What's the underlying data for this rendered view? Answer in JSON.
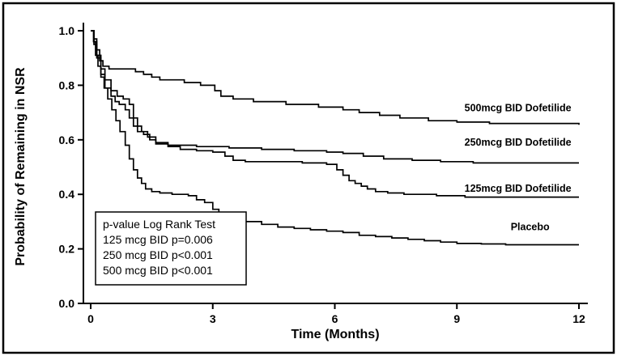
{
  "figure": {
    "background": "#ffffff",
    "border_color": "#000000",
    "line_color": "#000000"
  },
  "chart_data": {
    "type": "line",
    "subtype": "kaplan-meier-step-curves",
    "title": "",
    "xlabel": "Time (Months)",
    "ylabel": "Probability of Remaining in NSR",
    "xlim": [
      0,
      12
    ],
    "ylim": [
      0,
      1
    ],
    "x_tick_values": [
      0,
      3,
      6,
      9,
      12
    ],
    "x_tick_labels": [
      "0",
      "3",
      "6",
      "9",
      "12"
    ],
    "y_tick_values": [
      0.0,
      0.2,
      0.4,
      0.6,
      0.8,
      1.0
    ],
    "y_tick_labels": [
      "0.0",
      "0.2",
      "0.4",
      "0.6",
      "0.8",
      "1.0"
    ],
    "grid": false,
    "legend_position": "curve-end-labels",
    "series": [
      {
        "id": "dofetilide-500",
        "name": "500mcg BID Dofetilide",
        "label_x": 10.5,
        "label_y": 0.705,
        "points": [
          [
            0,
            1.0
          ],
          [
            0.08,
            0.97
          ],
          [
            0.15,
            0.93
          ],
          [
            0.22,
            0.89
          ],
          [
            0.3,
            0.87
          ],
          [
            0.45,
            0.86
          ],
          [
            1.1,
            0.85
          ],
          [
            1.3,
            0.84
          ],
          [
            1.5,
            0.83
          ],
          [
            1.7,
            0.82
          ],
          [
            2.3,
            0.81
          ],
          [
            2.7,
            0.8
          ],
          [
            3.05,
            0.78
          ],
          [
            3.2,
            0.76
          ],
          [
            3.5,
            0.75
          ],
          [
            4.0,
            0.74
          ],
          [
            4.8,
            0.73
          ],
          [
            5.6,
            0.72
          ],
          [
            6.2,
            0.71
          ],
          [
            6.6,
            0.7
          ],
          [
            7.1,
            0.69
          ],
          [
            7.6,
            0.68
          ],
          [
            8.3,
            0.67
          ],
          [
            9.0,
            0.665
          ],
          [
            9.8,
            0.66
          ],
          [
            12,
            0.655
          ]
        ]
      },
      {
        "id": "dofetilide-250",
        "name": "250mcg BID Dofetilide",
        "label_x": 10.5,
        "label_y": 0.578,
        "points": [
          [
            0,
            1.0
          ],
          [
            0.08,
            0.96
          ],
          [
            0.15,
            0.91
          ],
          [
            0.25,
            0.86
          ],
          [
            0.35,
            0.82
          ],
          [
            0.5,
            0.78
          ],
          [
            0.65,
            0.76
          ],
          [
            0.8,
            0.75
          ],
          [
            0.95,
            0.73
          ],
          [
            1.05,
            0.68
          ],
          [
            1.15,
            0.65
          ],
          [
            1.25,
            0.63
          ],
          [
            1.4,
            0.61
          ],
          [
            1.6,
            0.59
          ],
          [
            1.9,
            0.58
          ],
          [
            2.6,
            0.575
          ],
          [
            3.4,
            0.57
          ],
          [
            4.2,
            0.565
          ],
          [
            5.0,
            0.56
          ],
          [
            5.8,
            0.555
          ],
          [
            6.2,
            0.55
          ],
          [
            6.7,
            0.54
          ],
          [
            7.2,
            0.53
          ],
          [
            7.9,
            0.525
          ],
          [
            8.6,
            0.52
          ],
          [
            9.4,
            0.515
          ],
          [
            12,
            0.515
          ]
        ]
      },
      {
        "id": "dofetilide-125",
        "name": "125mcg BID Dofetilide",
        "label_x": 10.5,
        "label_y": 0.41,
        "points": [
          [
            0,
            1.0
          ],
          [
            0.08,
            0.95
          ],
          [
            0.15,
            0.9
          ],
          [
            0.25,
            0.84
          ],
          [
            0.35,
            0.79
          ],
          [
            0.5,
            0.76
          ],
          [
            0.6,
            0.74
          ],
          [
            0.7,
            0.73
          ],
          [
            0.85,
            0.71
          ],
          [
            0.95,
            0.68
          ],
          [
            1.05,
            0.65
          ],
          [
            1.15,
            0.63
          ],
          [
            1.3,
            0.62
          ],
          [
            1.45,
            0.6
          ],
          [
            1.6,
            0.585
          ],
          [
            1.9,
            0.575
          ],
          [
            2.2,
            0.565
          ],
          [
            2.6,
            0.56
          ],
          [
            3.0,
            0.555
          ],
          [
            3.3,
            0.54
          ],
          [
            3.5,
            0.525
          ],
          [
            3.8,
            0.52
          ],
          [
            4.5,
            0.52
          ],
          [
            5.2,
            0.515
          ],
          [
            5.8,
            0.51
          ],
          [
            6.05,
            0.49
          ],
          [
            6.2,
            0.47
          ],
          [
            6.35,
            0.45
          ],
          [
            6.5,
            0.44
          ],
          [
            6.65,
            0.43
          ],
          [
            6.8,
            0.42
          ],
          [
            7.0,
            0.41
          ],
          [
            7.3,
            0.405
          ],
          [
            7.7,
            0.4
          ],
          [
            8.5,
            0.395
          ],
          [
            9.2,
            0.39
          ],
          [
            12,
            0.39
          ]
        ]
      },
      {
        "id": "placebo",
        "name": "Placebo",
        "label_x": 10.8,
        "label_y": 0.268,
        "points": [
          [
            0,
            1.0
          ],
          [
            0.07,
            0.96
          ],
          [
            0.12,
            0.91
          ],
          [
            0.18,
            0.87
          ],
          [
            0.25,
            0.83
          ],
          [
            0.33,
            0.79
          ],
          [
            0.42,
            0.75
          ],
          [
            0.52,
            0.71
          ],
          [
            0.62,
            0.67
          ],
          [
            0.72,
            0.63
          ],
          [
            0.85,
            0.58
          ],
          [
            0.95,
            0.53
          ],
          [
            1.05,
            0.49
          ],
          [
            1.15,
            0.46
          ],
          [
            1.25,
            0.44
          ],
          [
            1.35,
            0.42
          ],
          [
            1.5,
            0.41
          ],
          [
            1.7,
            0.405
          ],
          [
            2.0,
            0.4
          ],
          [
            2.4,
            0.395
          ],
          [
            2.6,
            0.38
          ],
          [
            2.8,
            0.37
          ],
          [
            3.0,
            0.345
          ],
          [
            3.15,
            0.33
          ],
          [
            3.3,
            0.32
          ],
          [
            3.5,
            0.31
          ],
          [
            3.8,
            0.3
          ],
          [
            4.2,
            0.29
          ],
          [
            4.6,
            0.28
          ],
          [
            5.0,
            0.275
          ],
          [
            5.4,
            0.27
          ],
          [
            5.8,
            0.265
          ],
          [
            6.2,
            0.26
          ],
          [
            6.6,
            0.25
          ],
          [
            7.0,
            0.245
          ],
          [
            7.4,
            0.24
          ],
          [
            7.8,
            0.235
          ],
          [
            8.2,
            0.23
          ],
          [
            8.6,
            0.225
          ],
          [
            9.0,
            0.22
          ],
          [
            9.6,
            0.218
          ],
          [
            10.2,
            0.215
          ],
          [
            12,
            0.215
          ]
        ]
      }
    ],
    "annotation": {
      "lines": [
        "p-value Log Rank Test",
        "125 mcg BID p=0.006",
        "250 mcg BID p<0.001",
        "500 mcg BID p<0.001"
      ]
    }
  }
}
